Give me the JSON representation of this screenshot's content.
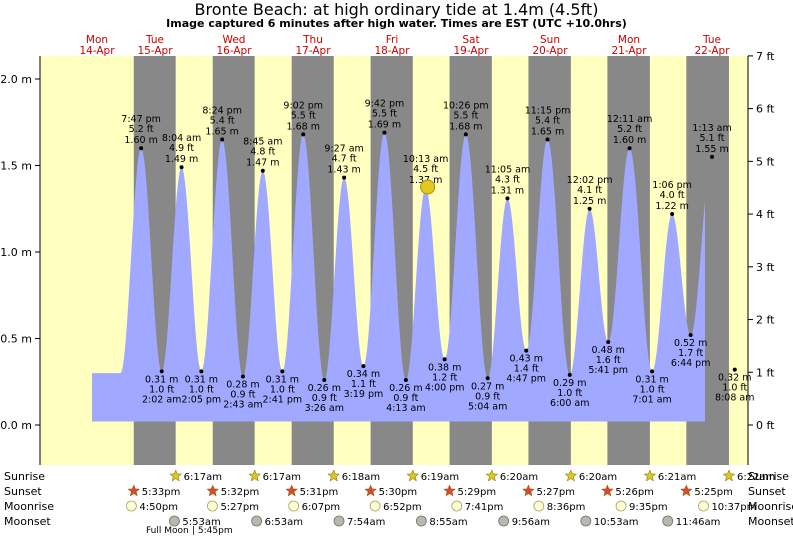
{
  "header": {
    "title": "Bronte Beach: at high  ordinary tide at 1.4m (4.5ft)",
    "subtitle": "Image captured 6 minutes after high water. Times are EST (UTC +10.0hrs)"
  },
  "days": [
    {
      "dow": "Mon",
      "date": "14-Apr"
    },
    {
      "dow": "Tue",
      "date": "15-Apr"
    },
    {
      "dow": "Wed",
      "date": "16-Apr"
    },
    {
      "dow": "Thu",
      "date": "17-Apr"
    },
    {
      "dow": "Fri",
      "date": "18-Apr"
    },
    {
      "dow": "Sat",
      "date": "19-Apr"
    },
    {
      "dow": "Sun",
      "date": "20-Apr"
    },
    {
      "dow": "Mon",
      "date": "21-Apr"
    },
    {
      "dow": "Tue",
      "date": "22-Apr"
    }
  ],
  "row_labels": {
    "sunrise": "Sunrise",
    "sunset": "Sunset",
    "moonrise": "Moonrise",
    "moonset": "Moonset"
  },
  "colors": {
    "day": "#ffffc0",
    "night": "#888888",
    "water": "#a0a8ff",
    "accent": "#cc0000",
    "star_sun": "#d8c820",
    "star_set": "#d84a30"
  },
  "chart_data": {
    "type": "area",
    "title": "Bronte Beach: at high  ordinary tide at 1.4m (4.5ft)",
    "subtitle": "Image captured 6 minutes after high water. Times are EST (UTC +10.0hrs)",
    "ylim_m": [
      -0.1,
      2.1
    ],
    "y_ticks_m": [
      "0.0 m",
      "0.5 m",
      "1.0 m",
      "1.5 m",
      "2.0 m"
    ],
    "y_ticks_ft": [
      "0 ft",
      "1 ft",
      "2 ft",
      "3 ft",
      "4 ft",
      "5 ft",
      "6 ft",
      "7 ft"
    ],
    "tides": [
      {
        "time": "7:47 pm",
        "m": 1.6,
        "ft": 5.2,
        "type": "high",
        "day": 0
      },
      {
        "time": "2:02 am",
        "m": 0.31,
        "ft": 1.0,
        "type": "low",
        "day": 1
      },
      {
        "time": "8:04 am",
        "m": 1.49,
        "ft": 4.9,
        "type": "high",
        "day": 1
      },
      {
        "time": "2:05 pm",
        "m": 0.31,
        "ft": 1.0,
        "type": "low",
        "day": 1
      },
      {
        "time": "8:24 pm",
        "m": 1.65,
        "ft": 5.4,
        "type": "high",
        "day": 1
      },
      {
        "time": "2:43 am",
        "m": 0.28,
        "ft": 0.9,
        "type": "low",
        "day": 2
      },
      {
        "time": "8:45 am",
        "m": 1.47,
        "ft": 4.8,
        "type": "high",
        "day": 2
      },
      {
        "time": "2:41 pm",
        "m": 0.31,
        "ft": 1.0,
        "type": "low",
        "day": 2
      },
      {
        "time": "9:02 pm",
        "m": 1.68,
        "ft": 5.5,
        "type": "high",
        "day": 2
      },
      {
        "time": "3:26 am",
        "m": 0.26,
        "ft": 0.9,
        "type": "low",
        "day": 3
      },
      {
        "time": "9:27 am",
        "m": 1.43,
        "ft": 4.7,
        "type": "high",
        "day": 3
      },
      {
        "time": "3:19 pm",
        "m": 0.34,
        "ft": 1.1,
        "type": "low",
        "day": 3
      },
      {
        "time": "9:42 pm",
        "m": 1.69,
        "ft": 5.5,
        "type": "high",
        "day": 3
      },
      {
        "time": "4:13 am",
        "m": 0.26,
        "ft": 0.9,
        "type": "low",
        "day": 4
      },
      {
        "time": "10:13 am",
        "m": 1.37,
        "ft": 4.5,
        "type": "high",
        "day": 4
      },
      {
        "time": "4:00 pm",
        "m": 0.38,
        "ft": 1.2,
        "type": "low",
        "day": 4
      },
      {
        "time": "10:26 pm",
        "m": 1.68,
        "ft": 5.5,
        "type": "high",
        "day": 4
      },
      {
        "time": "5:04 am",
        "m": 0.27,
        "ft": 0.9,
        "type": "low",
        "day": 5
      },
      {
        "time": "11:05 am",
        "m": 1.31,
        "ft": 4.3,
        "type": "high",
        "day": 5
      },
      {
        "time": "4:47 pm",
        "m": 0.43,
        "ft": 1.4,
        "type": "low",
        "day": 5
      },
      {
        "time": "11:15 pm",
        "m": 1.65,
        "ft": 5.4,
        "type": "high",
        "day": 5
      },
      {
        "time": "6:00 am",
        "m": 0.29,
        "ft": 1.0,
        "type": "low",
        "day": 6
      },
      {
        "time": "12:02 pm",
        "m": 1.25,
        "ft": 4.1,
        "type": "high",
        "day": 6
      },
      {
        "time": "5:41 pm",
        "m": 0.48,
        "ft": 1.6,
        "type": "low",
        "day": 6
      },
      {
        "time": "12:11 am",
        "m": 1.6,
        "ft": 5.2,
        "type": "high",
        "day": 7
      },
      {
        "time": "7:01 am",
        "m": 0.31,
        "ft": 1.0,
        "type": "low",
        "day": 7
      },
      {
        "time": "1:06 pm",
        "m": 1.22,
        "ft": 4.0,
        "type": "high",
        "day": 7
      },
      {
        "time": "6:44 pm",
        "m": 0.52,
        "ft": 1.7,
        "type": "low",
        "day": 7
      },
      {
        "time": "1:13 am",
        "m": 1.55,
        "ft": 5.1,
        "type": "high",
        "day": 8
      },
      {
        "time": "8:08 am",
        "m": 0.32,
        "ft": 1.0,
        "type": "low",
        "day": 8
      }
    ],
    "current": {
      "time": "10:13 am",
      "day": 4,
      "m": 1.37,
      "label": "1.37"
    }
  },
  "sunrise": [
    {
      "day": 1,
      "time": "6:17am"
    },
    {
      "day": 2,
      "time": "6:17am"
    },
    {
      "day": 3,
      "time": "6:18am"
    },
    {
      "day": 4,
      "time": "6:19am"
    },
    {
      "day": 5,
      "time": "6:20am"
    },
    {
      "day": 6,
      "time": "6:20am"
    },
    {
      "day": 7,
      "time": "6:21am"
    },
    {
      "day": 8,
      "time": "6:22am"
    }
  ],
  "sunset": [
    {
      "day": 0,
      "time": "5:33pm"
    },
    {
      "day": 1,
      "time": "5:32pm"
    },
    {
      "day": 2,
      "time": "5:31pm"
    },
    {
      "day": 3,
      "time": "5:30pm"
    },
    {
      "day": 4,
      "time": "5:29pm"
    },
    {
      "day": 5,
      "time": "5:27pm"
    },
    {
      "day": 6,
      "time": "5:26pm"
    },
    {
      "day": 7,
      "time": "5:25pm"
    }
  ],
  "moonrise": [
    {
      "day": 0,
      "time": "4:50pm"
    },
    {
      "day": 1,
      "time": "5:27pm"
    },
    {
      "day": 2,
      "time": "6:07pm"
    },
    {
      "day": 3,
      "time": "6:52pm"
    },
    {
      "day": 4,
      "time": "7:41pm"
    },
    {
      "day": 5,
      "time": "8:36pm"
    },
    {
      "day": 6,
      "time": "9:35pm"
    },
    {
      "day": 7,
      "time": "10:37pm"
    }
  ],
  "moonset": [
    {
      "day": 1,
      "time": "5:53am"
    },
    {
      "day": 2,
      "time": "6:53am"
    },
    {
      "day": 3,
      "time": "7:54am"
    },
    {
      "day": 4,
      "time": "8:55am"
    },
    {
      "day": 5,
      "time": "9:56am"
    },
    {
      "day": 6,
      "time": "10:53am"
    },
    {
      "day": 7,
      "time": "11:46am"
    }
  ],
  "moon_phase": {
    "label": "Full Moon",
    "time": "5:45pm"
  }
}
